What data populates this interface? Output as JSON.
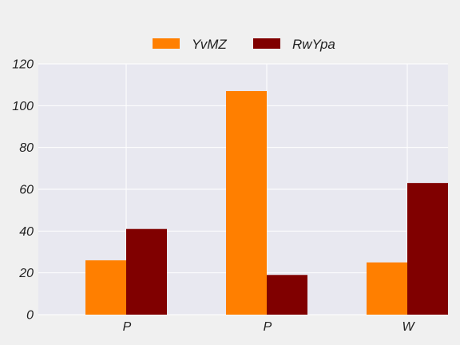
{
  "colors": {
    "page_background": "#f0f0f0",
    "plot_background": "#e8e8f0",
    "grid": "#ffffff",
    "series": [
      "#ff7f00",
      "#800000"
    ]
  },
  "chart_data": {
    "type": "bar",
    "categories": [
      "P",
      "P",
      "W"
    ],
    "series": [
      {
        "name": "YvMZ",
        "values": [
          26,
          107,
          25
        ]
      },
      {
        "name": "RwYpa",
        "values": [
          41,
          19,
          63
        ]
      }
    ],
    "title": "",
    "xlabel": "",
    "ylabel": "",
    "ylim": [
      0,
      120
    ],
    "yticks": [
      0,
      20,
      40,
      60,
      80,
      100,
      120
    ],
    "grid": true,
    "legend_position": "top-center"
  }
}
